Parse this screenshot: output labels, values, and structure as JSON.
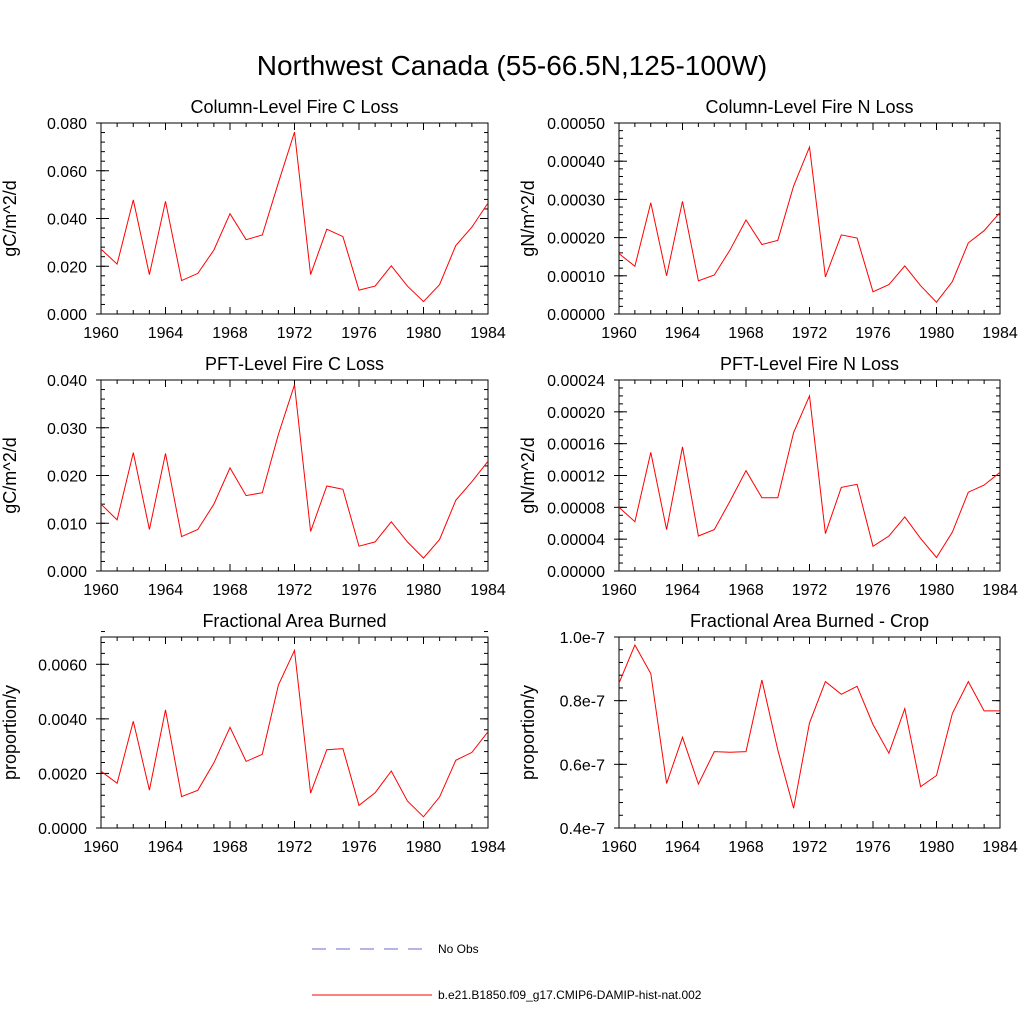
{
  "figure": {
    "title": "Northwest Canada (55-66.5N,125-100W)"
  },
  "legend": {
    "placement": "bottom-center",
    "entries": [
      {
        "label": "No Obs",
        "color": "#6a6acd",
        "dash": "dashed"
      },
      {
        "label": "b.e21.B1850.f09_g17.CMIP6-DAMIP-hist-nat.002",
        "color": "#ff0000",
        "dash": "solid"
      }
    ]
  },
  "chart_data": [
    {
      "type": "line",
      "title": "Column-Level Fire C Loss",
      "ylabel": "gC/m^2/d",
      "xlabel": "",
      "xlim": [
        1960,
        1984
      ],
      "ylim": [
        0,
        0.08
      ],
      "x_ticks": [
        1960,
        1964,
        1968,
        1972,
        1976,
        1980,
        1984
      ],
      "y_ticks": [
        0,
        0.02,
        0.04,
        0.06,
        0.08
      ],
      "y_tick_labels": [
        "0.000",
        "0.020",
        "0.040",
        "0.060",
        "0.080"
      ],
      "y_minor_step": 0.004,
      "x": [
        1960,
        1961,
        1962,
        1963,
        1964,
        1965,
        1966,
        1967,
        1968,
        1969,
        1970,
        1971,
        1972,
        1973,
        1974,
        1975,
        1976,
        1977,
        1978,
        1979,
        1980,
        1981,
        1982,
        1983,
        1984
      ],
      "series": [
        {
          "name": "b.e21.B1850.f09_g17.CMIP6-DAMIP-hist-nat.002",
          "color": "#ff0000",
          "values": [
            0.0272,
            0.0209,
            0.0478,
            0.0165,
            0.0472,
            0.014,
            0.017,
            0.0268,
            0.042,
            0.0311,
            0.0331,
            0.055,
            0.0762,
            0.0165,
            0.0355,
            0.0324,
            0.01,
            0.0117,
            0.0202,
            0.0117,
            0.0052,
            0.0123,
            0.0287,
            0.0364,
            0.0465
          ]
        }
      ]
    },
    {
      "type": "line",
      "title": "Column-Level Fire N Loss",
      "ylabel": "gN/m^2/d",
      "xlabel": "",
      "xlim": [
        1960,
        1984
      ],
      "ylim": [
        0,
        0.0005
      ],
      "x_ticks": [
        1960,
        1964,
        1968,
        1972,
        1976,
        1980,
        1984
      ],
      "y_ticks": [
        0,
        0.0001,
        0.0002,
        0.0003,
        0.0004,
        0.0005
      ],
      "y_tick_labels": [
        "0.00000",
        "0.00010",
        "0.00020",
        "0.00030",
        "0.00040",
        "0.00050"
      ],
      "y_minor_step": 2e-05,
      "x": [
        1960,
        1961,
        1962,
        1963,
        1964,
        1965,
        1966,
        1967,
        1968,
        1969,
        1970,
        1971,
        1972,
        1973,
        1974,
        1975,
        1976,
        1977,
        1978,
        1979,
        1980,
        1981,
        1982,
        1983,
        1984
      ],
      "series": [
        {
          "name": "b.e21.B1850.f09_g17.CMIP6-DAMIP-hist-nat.002",
          "color": "#ff0000",
          "values": [
            0.000158,
            0.000125,
            0.000291,
            0.0001,
            0.000295,
            8.7e-05,
            0.000102,
            0.000168,
            0.000246,
            0.000182,
            0.000193,
            0.000335,
            0.000437,
            9.7e-05,
            0.000207,
            0.000199,
            5.8e-05,
            7.7e-05,
            0.000126,
            7.4e-05,
            3.1e-05,
            8.5e-05,
            0.000186,
            0.000218,
            0.000266
          ]
        }
      ]
    },
    {
      "type": "line",
      "title": "PFT-Level Fire C Loss",
      "ylabel": "gC/m^2/d",
      "xlabel": "",
      "xlim": [
        1960,
        1984
      ],
      "ylim": [
        0,
        0.04
      ],
      "x_ticks": [
        1960,
        1964,
        1968,
        1972,
        1976,
        1980,
        1984
      ],
      "y_ticks": [
        0,
        0.01,
        0.02,
        0.03,
        0.04
      ],
      "y_tick_labels": [
        "0.000",
        "0.010",
        "0.020",
        "0.030",
        "0.040"
      ],
      "y_minor_step": 0.002,
      "x": [
        1960,
        1961,
        1962,
        1963,
        1964,
        1965,
        1966,
        1967,
        1968,
        1969,
        1970,
        1971,
        1972,
        1973,
        1974,
        1975,
        1976,
        1977,
        1978,
        1979,
        1980,
        1981,
        1982,
        1983,
        1984
      ],
      "series": [
        {
          "name": "b.e21.B1850.f09_g17.CMIP6-DAMIP-hist-nat.002",
          "color": "#ff0000",
          "values": [
            0.014,
            0.0107,
            0.0248,
            0.0087,
            0.0246,
            0.0072,
            0.0087,
            0.014,
            0.0216,
            0.0158,
            0.0164,
            0.0286,
            0.039,
            0.0083,
            0.0178,
            0.0171,
            0.0052,
            0.0061,
            0.0103,
            0.0061,
            0.0027,
            0.0066,
            0.0148,
            0.0187,
            0.023
          ]
        }
      ]
    },
    {
      "type": "line",
      "title": "PFT-Level Fire N Loss",
      "ylabel": "gN/m^2/d",
      "xlabel": "",
      "xlim": [
        1960,
        1984
      ],
      "ylim": [
        0,
        0.00024
      ],
      "x_ticks": [
        1960,
        1964,
        1968,
        1972,
        1976,
        1980,
        1984
      ],
      "y_ticks": [
        0,
        4e-05,
        8e-05,
        0.00012,
        0.00016,
        0.0002,
        0.00024
      ],
      "y_tick_labels": [
        "0.00000",
        "0.00004",
        "0.00008",
        "0.00012",
        "0.00016",
        "0.00020",
        "0.00024"
      ],
      "y_minor_step": 1e-05,
      "x": [
        1960,
        1961,
        1962,
        1963,
        1964,
        1965,
        1966,
        1967,
        1968,
        1969,
        1970,
        1971,
        1972,
        1973,
        1974,
        1975,
        1976,
        1977,
        1978,
        1979,
        1980,
        1981,
        1982,
        1983,
        1984
      ],
      "series": [
        {
          "name": "b.e21.B1850.f09_g17.CMIP6-DAMIP-hist-nat.002",
          "color": "#ff0000",
          "values": [
            8e-05,
            6.2e-05,
            0.000149,
            5.2e-05,
            0.000156,
            4.4e-05,
            5.2e-05,
            8.8e-05,
            0.000126,
            9.2e-05,
            9.2e-05,
            0.000174,
            0.00022,
            4.7e-05,
            0.000105,
            0.000109,
            3.1e-05,
            4.4e-05,
            6.8e-05,
            4.1e-05,
            1.7e-05,
            4.9e-05,
            9.9e-05,
            0.000108,
            0.000124
          ]
        }
      ]
    },
    {
      "type": "line",
      "title": "Fractional Area Burned",
      "ylabel": "proportion/y",
      "xlabel": "",
      "xlim": [
        1960,
        1984
      ],
      "ylim": [
        0,
        0.007
      ],
      "x_ticks": [
        1960,
        1964,
        1968,
        1972,
        1976,
        1980,
        1984
      ],
      "y_ticks": [
        0,
        0.002,
        0.004,
        0.006
      ],
      "y_tick_labels": [
        "0.0000",
        "0.0020",
        "0.0040",
        "0.0060"
      ],
      "y_minor_step": 0.0004,
      "x": [
        1960,
        1961,
        1962,
        1963,
        1964,
        1965,
        1966,
        1967,
        1968,
        1969,
        1970,
        1971,
        1972,
        1973,
        1974,
        1975,
        1976,
        1977,
        1978,
        1979,
        1980,
        1981,
        1982,
        1983,
        1984
      ],
      "series": [
        {
          "name": "b.e21.B1850.f09_g17.CMIP6-DAMIP-hist-nat.002",
          "color": "#ff0000",
          "values": [
            0.00208,
            0.00164,
            0.00391,
            0.00139,
            0.00433,
            0.00115,
            0.00138,
            0.00239,
            0.00369,
            0.00244,
            0.0027,
            0.00524,
            0.00651,
            0.00128,
            0.00287,
            0.00291,
            0.00083,
            0.00129,
            0.00209,
            0.00099,
            0.00041,
            0.00114,
            0.00248,
            0.00277,
            0.00353
          ]
        }
      ]
    },
    {
      "type": "line",
      "title": "Fractional Area Burned - Crop",
      "ylabel": "proportion/y",
      "xlabel": "",
      "xlim": [
        1960,
        1984
      ],
      "ylim": [
        4e-08,
        1e-07
      ],
      "x_ticks": [
        1960,
        1964,
        1968,
        1972,
        1976,
        1980,
        1984
      ],
      "y_ticks": [
        4e-08,
        6e-08,
        8e-08,
        1e-07
      ],
      "y_tick_labels": [
        "0.4e-7",
        "0.6e-7",
        "0.8e-7",
        "1.0e-7"
      ],
      "y_minor_step": 4e-09,
      "x": [
        1960,
        1961,
        1962,
        1963,
        1964,
        1965,
        1966,
        1967,
        1968,
        1969,
        1970,
        1971,
        1972,
        1973,
        1974,
        1975,
        1976,
        1977,
        1978,
        1979,
        1980,
        1981,
        1982,
        1983,
        1984
      ],
      "series": [
        {
          "name": "b.e21.B1850.f09_g17.CMIP6-DAMIP-hist-nat.002",
          "color": "#ff0000",
          "values": [
            8.55e-08,
            9.75e-08,
            8.85e-08,
            5.4e-08,
            6.85e-08,
            5.38e-08,
            6.4e-08,
            6.38e-08,
            6.4e-08,
            8.65e-08,
            6.45e-08,
            4.62e-08,
            7.3e-08,
            8.6e-08,
            8.2e-08,
            8.45e-08,
            7.25e-08,
            6.35e-08,
            7.75e-08,
            5.3e-08,
            5.65e-08,
            7.6e-08,
            8.6e-08,
            7.68e-08,
            7.68e-08
          ]
        }
      ]
    }
  ]
}
